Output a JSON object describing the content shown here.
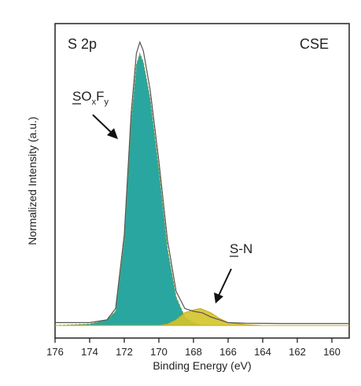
{
  "chart_data": {
    "type": "area",
    "panel_label": "S 2p",
    "sample_label": "CSE",
    "xlabel": "Binding Energy (eV)",
    "ylabel": "Normalized Intensity (a.u.)",
    "xlim": [
      176,
      159
    ],
    "x_reversed": true,
    "x_ticks": [
      "176",
      "174",
      "172",
      "170",
      "168",
      "166",
      "164",
      "162",
      "160"
    ],
    "y_ticks_visible": false,
    "ylim": [
      0,
      1.05
    ],
    "series": [
      {
        "role": "experimental-envelope",
        "color": "#555555",
        "points": [
          [
            176,
            0.01
          ],
          [
            174,
            0.01
          ],
          [
            173,
            0.02
          ],
          [
            172.5,
            0.06
          ],
          [
            172,
            0.32
          ],
          [
            171.6,
            0.75
          ],
          [
            171.3,
            0.96
          ],
          [
            171.1,
            1.0
          ],
          [
            170.9,
            0.97
          ],
          [
            170.5,
            0.83
          ],
          [
            170,
            0.58
          ],
          [
            169.5,
            0.3
          ],
          [
            169,
            0.12
          ],
          [
            168.5,
            0.06
          ],
          [
            168,
            0.05
          ],
          [
            167.5,
            0.045
          ],
          [
            167,
            0.03
          ],
          [
            166.5,
            0.02
          ],
          [
            166,
            0.01
          ],
          [
            165,
            0.008
          ],
          [
            163,
            0.007
          ],
          [
            159,
            0.007
          ]
        ]
      },
      {
        "role": "sox-fy-component",
        "color": "#2aa6a0",
        "points": [
          [
            176,
            0.0
          ],
          [
            174,
            0.005
          ],
          [
            173,
            0.02
          ],
          [
            172.5,
            0.05
          ],
          [
            172,
            0.3
          ],
          [
            171.6,
            0.72
          ],
          [
            171.3,
            0.92
          ],
          [
            171.1,
            0.96
          ],
          [
            170.9,
            0.93
          ],
          [
            170.5,
            0.8
          ],
          [
            170,
            0.55
          ],
          [
            169.5,
            0.27
          ],
          [
            169,
            0.1
          ],
          [
            168.5,
            0.03
          ],
          [
            168,
            0.01
          ],
          [
            167.5,
            0.0
          ],
          [
            159,
            0.0
          ]
        ]
      },
      {
        "role": "s-n-component",
        "color": "#d4c42a",
        "points": [
          [
            176,
            0.0
          ],
          [
            170,
            0.0
          ],
          [
            169.5,
            0.005
          ],
          [
            169,
            0.02
          ],
          [
            168.5,
            0.045
          ],
          [
            168,
            0.055
          ],
          [
            167.6,
            0.06
          ],
          [
            167,
            0.045
          ],
          [
            166.5,
            0.025
          ],
          [
            166,
            0.01
          ],
          [
            165,
            0.003
          ],
          [
            164,
            0.0
          ],
          [
            159,
            0.0
          ]
        ]
      }
    ],
    "annotations": [
      {
        "name": "sox-fy",
        "base": "SO",
        "sub1": "x",
        "mid": "F",
        "sub2": "y",
        "underlined": "S"
      },
      {
        "name": "s-n",
        "text": "S-N",
        "underlined": "S"
      }
    ],
    "grid": false,
    "legend": "none"
  }
}
